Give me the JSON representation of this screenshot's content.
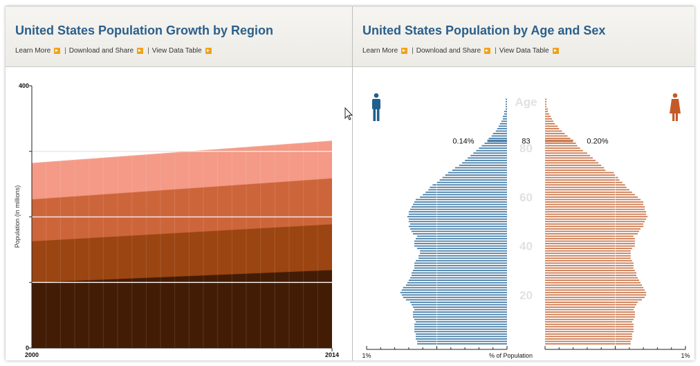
{
  "panels": {
    "left": {
      "title": "United States Population Growth by Region",
      "links": [
        "Learn More",
        "Download and Share",
        "View Data Table"
      ]
    },
    "right": {
      "title": "United States Population by Age and Sex",
      "links": [
        "Learn More",
        "Download and Share",
        "View Data Table"
      ]
    }
  },
  "colors": {
    "title": "#2b5f8a",
    "link_arrow": "#f0a21c",
    "male": "#4a7fa8",
    "female": "#cd7a50",
    "regions": [
      "#431c06",
      "#9b4512",
      "#cd653b",
      "#f49a87"
    ]
  },
  "chart_data": [
    {
      "type": "area",
      "stacked": true,
      "title": "United States Population Growth by Region",
      "ylabel": "Population (in millions)",
      "xlabel": "",
      "ylim": [
        0,
        400
      ],
      "x": [
        2000,
        2014
      ],
      "x_tick_labels": [
        "2000",
        "2014"
      ],
      "y_tick_labels": [
        "0",
        "400"
      ],
      "y_ticks": [
        0,
        100,
        200,
        300,
        400
      ],
      "grid": true,
      "series": [
        {
          "values": [
            101,
            120
          ]
        },
        {
          "values": [
            63,
            70
          ]
        },
        {
          "values": [
            64,
            70
          ]
        },
        {
          "values": [
            53,
            55
          ]
        }
      ]
    },
    {
      "type": "bar",
      "orientation": "horizontal",
      "subtype": "population-pyramid",
      "title": "United States Population by Age and Sex",
      "xlabel": "% of Population",
      "x_tick_labels": [
        "1%",
        "1%"
      ],
      "xlim": [
        -1,
        1
      ],
      "center_label": "Age",
      "age_labels": [
        "20",
        "40",
        "60",
        "80"
      ],
      "highlight": {
        "age": "83",
        "male": "0.14%",
        "female": "0.20%"
      },
      "ages": [
        0,
        1,
        2,
        3,
        4,
        5,
        6,
        7,
        8,
        9,
        10,
        11,
        12,
        13,
        14,
        15,
        16,
        17,
        18,
        19,
        20,
        21,
        22,
        23,
        24,
        25,
        26,
        27,
        28,
        29,
        30,
        31,
        32,
        33,
        34,
        35,
        36,
        37,
        38,
        39,
        40,
        41,
        42,
        43,
        44,
        45,
        46,
        47,
        48,
        49,
        50,
        51,
        52,
        53,
        54,
        55,
        56,
        57,
        58,
        59,
        60,
        61,
        62,
        63,
        64,
        65,
        66,
        67,
        68,
        69,
        70,
        71,
        72,
        73,
        74,
        75,
        76,
        77,
        78,
        79,
        80,
        81,
        82,
        83,
        84,
        85,
        86,
        87,
        88,
        89,
        90,
        91,
        92,
        93,
        94,
        95,
        96,
        97,
        98,
        99,
        100
      ],
      "male": [
        0.64,
        0.64,
        0.65,
        0.65,
        0.65,
        0.66,
        0.66,
        0.66,
        0.66,
        0.65,
        0.66,
        0.67,
        0.67,
        0.67,
        0.66,
        0.67,
        0.68,
        0.69,
        0.72,
        0.74,
        0.75,
        0.76,
        0.75,
        0.74,
        0.72,
        0.71,
        0.7,
        0.69,
        0.68,
        0.68,
        0.67,
        0.66,
        0.66,
        0.66,
        0.65,
        0.63,
        0.63,
        0.62,
        0.62,
        0.64,
        0.66,
        0.66,
        0.66,
        0.65,
        0.64,
        0.67,
        0.68,
        0.69,
        0.7,
        0.69,
        0.7,
        0.7,
        0.71,
        0.7,
        0.7,
        0.69,
        0.68,
        0.67,
        0.66,
        0.65,
        0.62,
        0.6,
        0.58,
        0.56,
        0.55,
        0.53,
        0.5,
        0.48,
        0.46,
        0.44,
        0.42,
        0.39,
        0.37,
        0.34,
        0.32,
        0.3,
        0.28,
        0.26,
        0.24,
        0.22,
        0.2,
        0.18,
        0.16,
        0.14,
        0.13,
        0.11,
        0.1,
        0.08,
        0.07,
        0.06,
        0.05,
        0.04,
        0.03,
        0.03,
        0.02,
        0.02,
        0.01,
        0.01,
        0.01,
        0.01,
        0.01
      ],
      "female": [
        0.61,
        0.61,
        0.62,
        0.62,
        0.62,
        0.63,
        0.63,
        0.63,
        0.63,
        0.62,
        0.63,
        0.64,
        0.64,
        0.64,
        0.63,
        0.64,
        0.65,
        0.66,
        0.69,
        0.71,
        0.72,
        0.72,
        0.71,
        0.7,
        0.69,
        0.68,
        0.67,
        0.66,
        0.65,
        0.65,
        0.64,
        0.63,
        0.63,
        0.63,
        0.62,
        0.61,
        0.61,
        0.61,
        0.61,
        0.62,
        0.64,
        0.64,
        0.64,
        0.64,
        0.63,
        0.66,
        0.67,
        0.68,
        0.7,
        0.7,
        0.71,
        0.72,
        0.73,
        0.72,
        0.72,
        0.71,
        0.71,
        0.7,
        0.7,
        0.68,
        0.66,
        0.64,
        0.62,
        0.6,
        0.58,
        0.57,
        0.55,
        0.53,
        0.52,
        0.5,
        0.49,
        0.43,
        0.42,
        0.4,
        0.38,
        0.36,
        0.34,
        0.32,
        0.3,
        0.27,
        0.25,
        0.23,
        0.22,
        0.2,
        0.18,
        0.16,
        0.14,
        0.12,
        0.1,
        0.09,
        0.07,
        0.06,
        0.05,
        0.04,
        0.03,
        0.02,
        0.02,
        0.01,
        0.01,
        0.01,
        0.01
      ]
    }
  ]
}
